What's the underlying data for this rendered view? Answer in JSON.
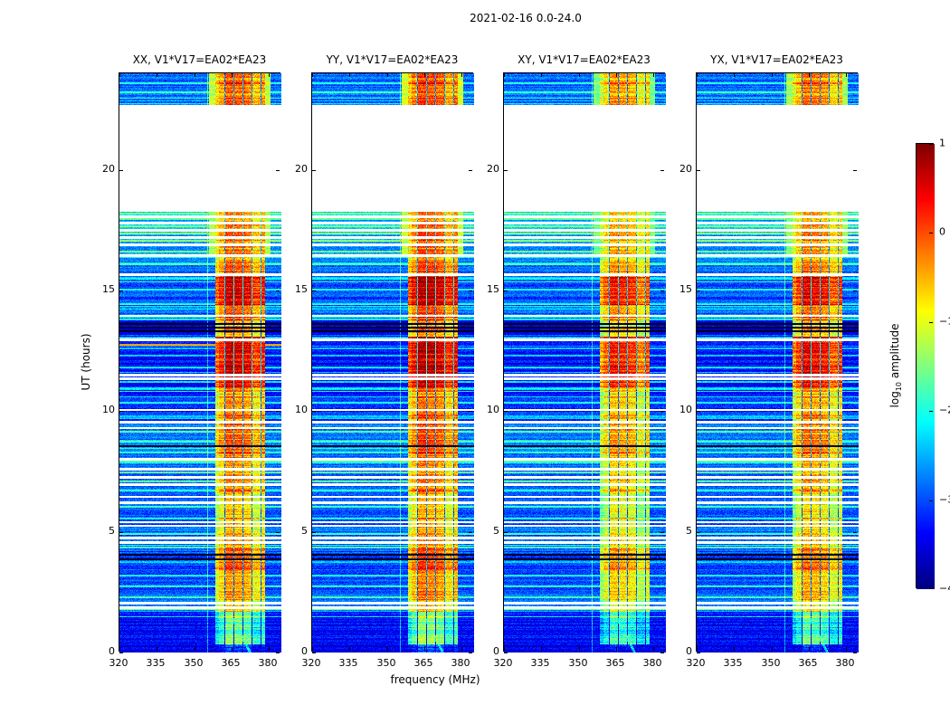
{
  "figure": {
    "title": "2021-02-16 0.0-24.0",
    "xlabel": "frequency (MHz)",
    "ylabel": "UT (hours)",
    "colorbar_label": "log10 amplitude",
    "colorbar_label_prefix": "log",
    "colorbar_label_sub": "10",
    "colorbar_label_suffix": " amplitude"
  },
  "chart_data": {
    "type": "heatmap",
    "title": "2021-02-16 0.0-24.0",
    "xlabel": "frequency (MHz)",
    "ylabel": "UT (hours)",
    "colormap": "jet",
    "clim": [
      -4,
      1
    ],
    "x_range": [
      320,
      385
    ],
    "x_ticks": [
      320,
      335,
      350,
      365,
      380
    ],
    "x_tick_labels": [
      "320",
      "335",
      "350",
      "365",
      "380"
    ],
    "y_range": [
      0,
      24
    ],
    "y_ticks": [
      0,
      5,
      10,
      15,
      20
    ],
    "y_tick_labels": [
      "0",
      "5",
      "10",
      "15",
      "20"
    ],
    "colorbar": {
      "label": "log10 amplitude",
      "range": [
        -4,
        1
      ],
      "ticks": [
        1,
        0,
        -1,
        -2,
        -3,
        -4
      ],
      "tick_labels": [
        "1",
        "0",
        "−1",
        "−2",
        "−3",
        "−4"
      ]
    },
    "panels": [
      {
        "title": "XX, V1*V17=EA02*EA23",
        "pol": "XX",
        "rfi_gain": 1.0,
        "seed": 1
      },
      {
        "title": "YY, V1*V17=EA02*EA23",
        "pol": "YY",
        "rfi_gain": 1.1,
        "seed": 2
      },
      {
        "title": "XY, V1*V17=EA02*EA23",
        "pol": "XY",
        "rfi_gain": 0.72,
        "seed": 3
      },
      {
        "title": "YX, V1*V17=EA02*EA23",
        "pol": "YX",
        "rfi_gain": 0.88,
        "seed": 4
      }
    ],
    "no_data_intervals": [
      [
        18.25,
        22.7
      ]
    ],
    "time_segments": [
      {
        "t": [
          0.0,
          0.35
        ],
        "base": -3.5,
        "rfi": -3.2,
        "wide": false
      },
      {
        "t": [
          0.35,
          1.7
        ],
        "base": -3.35,
        "rfi": -1.7,
        "wide": false
      },
      {
        "t": [
          1.7,
          2.15
        ],
        "base": -2.7,
        "rfi": -0.7,
        "wide": false
      },
      {
        "t": [
          2.15,
          3.3
        ],
        "base": -2.95,
        "rfi": -0.55,
        "wide": false
      },
      {
        "t": [
          3.3,
          4.3
        ],
        "base": -3.0,
        "rfi": -0.2,
        "wide": false
      },
      {
        "t": [
          4.3,
          5.3
        ],
        "base": -2.9,
        "rfi": -0.75,
        "wide": false
      },
      {
        "t": [
          5.3,
          6.6
        ],
        "base": -3.0,
        "rfi": -0.8,
        "wide": false
      },
      {
        "t": [
          6.6,
          8.0
        ],
        "base": -2.85,
        "rfi": -0.6,
        "wide": false
      },
      {
        "t": [
          8.0,
          9.6
        ],
        "base": -2.8,
        "rfi": -0.35,
        "wide": false
      },
      {
        "t": [
          9.6,
          11.0
        ],
        "base": -3.2,
        "rfi": -0.5,
        "wide": false
      },
      {
        "t": [
          11.0,
          13.1
        ],
        "base": -3.3,
        "rfi": 0.3,
        "wide": false
      },
      {
        "t": [
          13.1,
          13.75
        ],
        "base": -3.55,
        "rfi": -0.6,
        "wide": false
      },
      {
        "t": [
          13.75,
          14.4
        ],
        "base": -2.9,
        "rfi": -0.25,
        "wide": false
      },
      {
        "t": [
          14.4,
          15.7
        ],
        "base": -3.0,
        "rfi": 0.35,
        "wide": false
      },
      {
        "t": [
          15.7,
          16.5
        ],
        "base": -2.8,
        "rfi": -0.4,
        "wide": false
      },
      {
        "t": [
          16.5,
          18.25
        ],
        "base": -2.55,
        "rfi": -0.5,
        "wide": true
      },
      {
        "t": [
          22.7,
          24.1
        ],
        "base": -2.85,
        "rfi": -0.35,
        "wide": true
      }
    ],
    "white_line_times": [
      1.85,
      2.05,
      4.55,
      4.75,
      5.25,
      5.4,
      6.2,
      6.45,
      6.95,
      7.25,
      7.6,
      8.0,
      9.3,
      9.55,
      10.05,
      11.35,
      11.5,
      12.95,
      13.95,
      15.65,
      16.45,
      16.9,
      17.2,
      17.5,
      17.8,
      18.05
    ],
    "dark_line_times": [
      3.85,
      4.05,
      8.55,
      13.3,
      13.45,
      13.6
    ],
    "bright_line_times": [
      2.3,
      2.75,
      3.2,
      4.35,
      4.9,
      5.55,
      6.05,
      6.7,
      7.1,
      7.45,
      7.9,
      8.3,
      8.75,
      9.15,
      9.8,
      10.35,
      10.9,
      11.2,
      11.8,
      12.3,
      12.6,
      13.05,
      13.9,
      14.45,
      15.05,
      15.5,
      16.1,
      16.6,
      17.05,
      17.35,
      17.65,
      17.95,
      18.2,
      23.2,
      23.6
    ],
    "rfi": {
      "band": [
        358.5,
        378.5
      ],
      "wide_band": [
        356.0,
        380.5
      ],
      "columns": [
        {
          "f": [
            358.5,
            360.0
          ],
          "amp": -0.55
        },
        {
          "f": [
            360.0,
            362.5
          ],
          "amp": -0.2
        },
        {
          "f": [
            362.5,
            366.5
          ],
          "amp": 0.2
        },
        {
          "f": [
            366.5,
            370.5
          ],
          "amp": 0.12
        },
        {
          "f": [
            370.5,
            373.5
          ],
          "amp": 0.0
        },
        {
          "f": [
            373.5,
            376.5
          ],
          "amp": -0.35
        },
        {
          "f": [
            376.5,
            378.5
          ],
          "amp": -0.15
        }
      ],
      "dark_columns": [
        362.2,
        365.9,
        369.5,
        373.1,
        376.7
      ]
    },
    "extra_lines": {
      "vertical_mhz": 355.3,
      "xx_red_line_ut": 12.75
    }
  }
}
